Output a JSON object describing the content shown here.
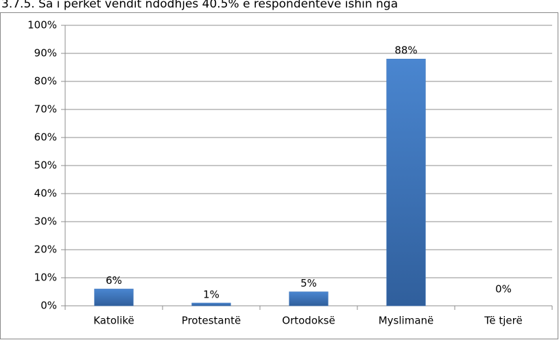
{
  "caption": "3.7.5. Sa i përket vendit ndodhjes 40.5% e respondentëve ishin nga",
  "chart_data": {
    "type": "bar",
    "categories": [
      "Katolikë",
      "Protestantë",
      "Ortodoksë",
      "Myslimanë",
      "Të tjerë"
    ],
    "values": [
      6,
      1,
      5,
      88,
      0
    ],
    "value_labels": [
      "6%",
      "1%",
      "5%",
      "88%",
      "0%"
    ],
    "color": "#3f75b9",
    "ylim": [
      0,
      100
    ],
    "yticks": [
      {
        "value": 0,
        "label": "0%"
      },
      {
        "value": 10,
        "label": "10%"
      },
      {
        "value": 20,
        "label": "20%"
      },
      {
        "value": 30,
        "label": "30%"
      },
      {
        "value": 40,
        "label": "40%"
      },
      {
        "value": 50,
        "label": "50%"
      },
      {
        "value": 60,
        "label": "60%"
      },
      {
        "value": 70,
        "label": "70%"
      },
      {
        "value": 80,
        "label": "80%"
      },
      {
        "value": 90,
        "label": "90%"
      },
      {
        "value": 100,
        "label": "100%"
      }
    ],
    "grid": true
  }
}
